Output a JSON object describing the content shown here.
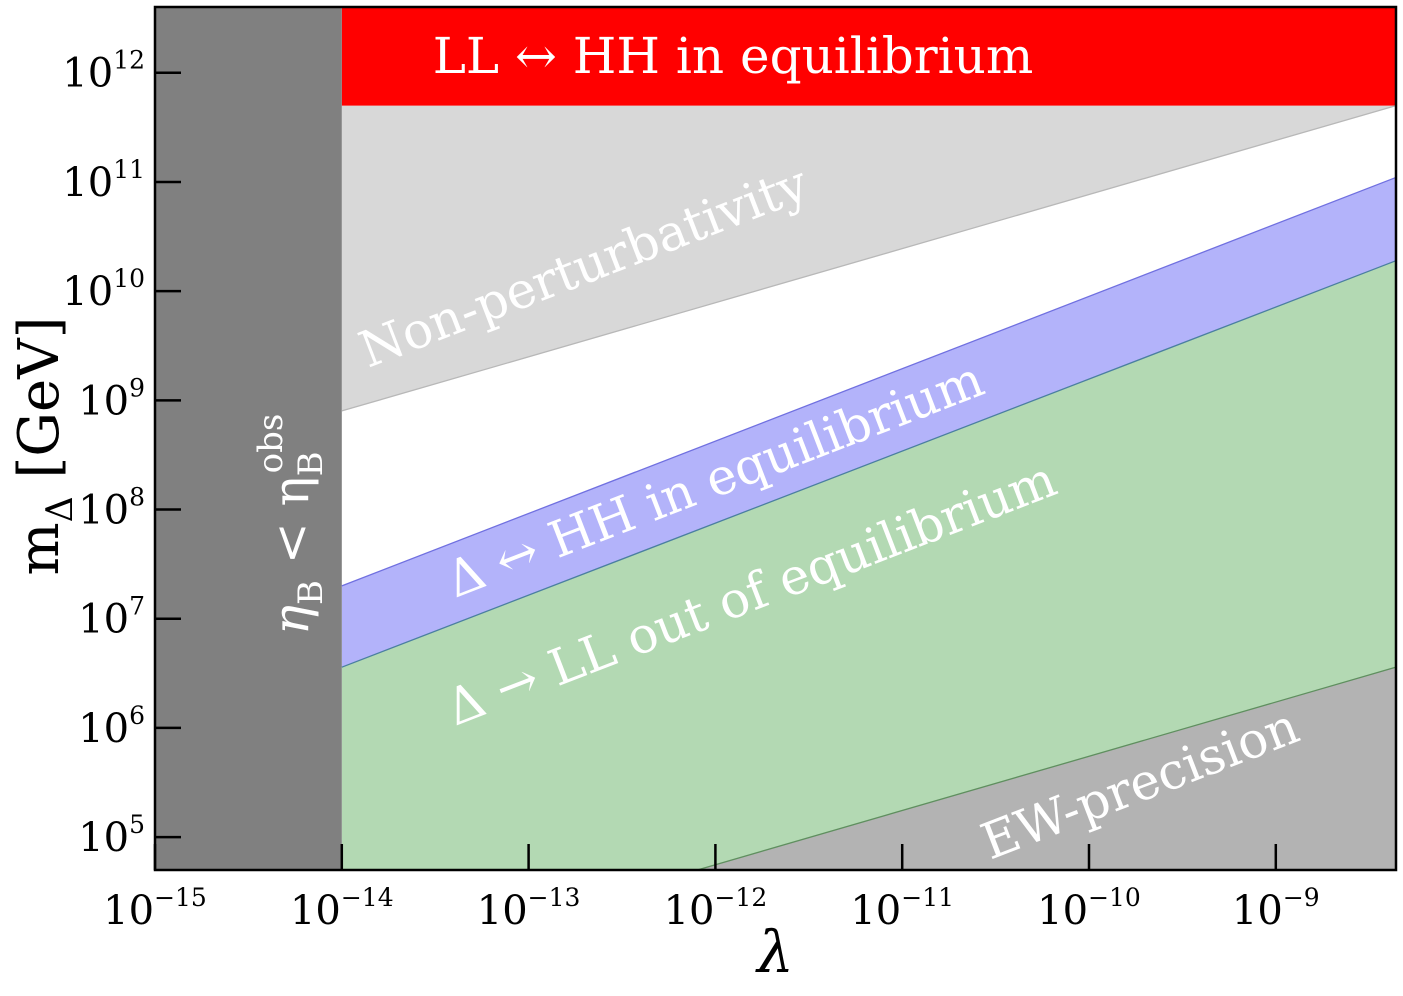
{
  "chart_data": {
    "type": "area",
    "scale": {
      "x": "log",
      "y": "log"
    },
    "xlim": [
      1e-15,
      4.4e-09
    ],
    "ylim": [
      50000.0,
      4000000000000.0
    ],
    "xlabel": "λ",
    "ylabel": {
      "main": "m",
      "sub": "Δ",
      "unit": "[GeV]"
    },
    "x_ticks": [
      {
        "base": "10",
        "exp": "−15",
        "value": 1e-15
      },
      {
        "base": "10",
        "exp": "−14",
        "value": 1e-14
      },
      {
        "base": "10",
        "exp": "−13",
        "value": 1e-13
      },
      {
        "base": "10",
        "exp": "−12",
        "value": 1e-12
      },
      {
        "base": "10",
        "exp": "−11",
        "value": 1e-11
      },
      {
        "base": "10",
        "exp": "−10",
        "value": 1e-10
      },
      {
        "base": "10",
        "exp": "−9",
        "value": 1e-09
      }
    ],
    "y_ticks": [
      {
        "base": "10",
        "exp": "5",
        "value": 100000.0
      },
      {
        "base": "10",
        "exp": "6",
        "value": 1000000.0
      },
      {
        "base": "10",
        "exp": "7",
        "value": 10000000.0
      },
      {
        "base": "10",
        "exp": "8",
        "value": 100000000.0
      },
      {
        "base": "10",
        "exp": "9",
        "value": 1000000000.0
      },
      {
        "base": "10",
        "exp": "10",
        "value": 10000000000.0
      },
      {
        "base": "10",
        "exp": "11",
        "value": 100000000000.0
      },
      {
        "base": "10",
        "exp": "12",
        "value": 1000000000000.0
      }
    ],
    "boundaries": {
      "lambda_min": 1e-14,
      "LL_HH_equilibrium_mass": 500000000000.0,
      "nonperturbativity_lower": [
        [
          1e-14,
          800000000.0
        ],
        [
          4.4e-09,
          500000000000.0
        ]
      ],
      "delta_HH_upper": [
        [
          1e-14,
          20000000.0
        ],
        [
          4.4e-09,
          110000000000.0
        ]
      ],
      "delta_LL_upper": [
        [
          1e-14,
          3600000.0
        ],
        [
          4.4e-09,
          19000000000.0
        ]
      ],
      "ew_precision_upper": [
        [
          8e-13,
          50000.0
        ],
        [
          4.4e-09,
          3600000.0
        ]
      ]
    },
    "colors": {
      "eta_region": "#808080",
      "LL_HH_region": "#ff0000",
      "nonperturbative_region": "#d8d8d8",
      "delta_HH_region": "#b3b3fa",
      "delta_LL_region": "#b3d9b3",
      "ew_precision_region": "#b3b3b3"
    },
    "annotations": {
      "eta": {
        "base": "η",
        "sub": "B",
        "middle": " < η",
        "sub2": "B",
        "sup2": "obs"
      },
      "LL_HH": "LL ↔ HH in equilibrium",
      "nonpert": "Non-perturbativity",
      "delta_HH": "Δ ↔ HH  in equilibrium",
      "delta_LL": "Δ → LL out of equilibrium",
      "ew": "EW-precision"
    }
  }
}
